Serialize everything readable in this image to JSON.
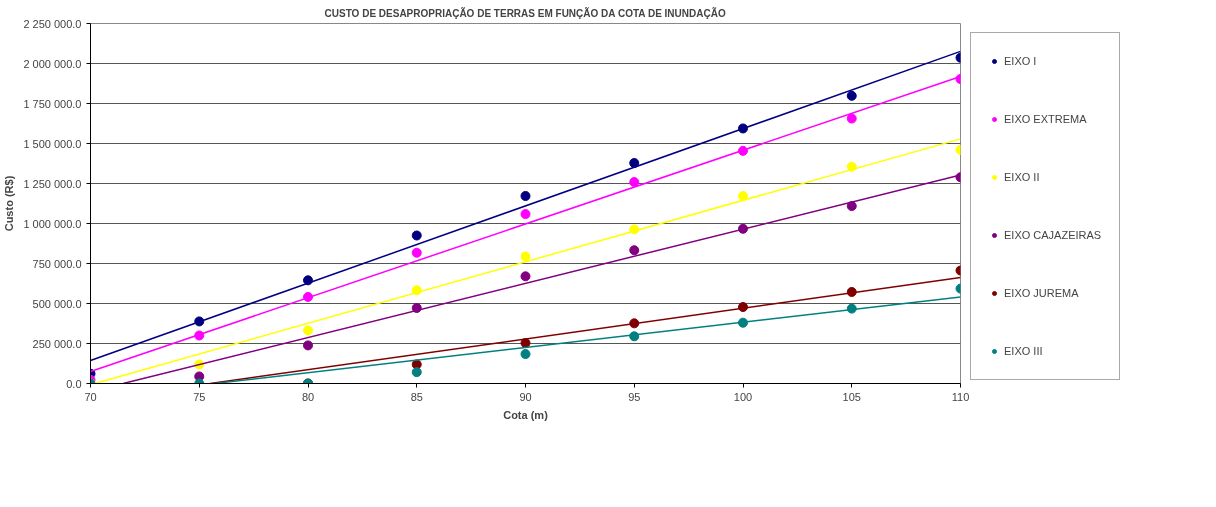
{
  "chart_data": {
    "type": "scatter",
    "title": "CUSTO DE DESAPROPRIAÇÃO DE TERRAS EM FUNÇÃO DA COTA DE INUNDAÇÃO",
    "xlabel": "Cota (m)",
    "ylabel": "Custo (R$)",
    "x": [
      70,
      75,
      80,
      85,
      90,
      95,
      100,
      105,
      110
    ],
    "xlim": [
      70,
      110
    ],
    "xticks": [
      70,
      75,
      80,
      85,
      90,
      95,
      100,
      105,
      110
    ],
    "ylim": [
      0,
      2250000
    ],
    "yticks": [
      {
        "value": 0,
        "label": "0.0"
      },
      {
        "value": 250000,
        "label": "250 000.0"
      },
      {
        "value": 500000,
        "label": "500 000.0"
      },
      {
        "value": 750000,
        "label": "750 000.0"
      },
      {
        "value": 1000000,
        "label": "1 000 000.0"
      },
      {
        "value": 1250000,
        "label": "1 250 000.0"
      },
      {
        "value": 1500000,
        "label": "1 500 000.0"
      },
      {
        "value": 1750000,
        "label": "1 750 000.0"
      },
      {
        "value": 2000000,
        "label": "2 000 000.0"
      },
      {
        "value": 2250000,
        "label": "2 250 000.0"
      }
    ],
    "grid": "y",
    "legend": "right",
    "series": [
      {
        "name": "EIXO I",
        "color": "#000080",
        "marker": "circle",
        "values": [
          61000,
          388000,
          645000,
          925000,
          1172000,
          1378000,
          1594000,
          1798000,
          2036000
        ]
      },
      {
        "name": "EIXO EXTREMA",
        "color": "#ff00ff",
        "marker": "circle",
        "values": [
          23000,
          300000,
          541000,
          817000,
          1059000,
          1259000,
          1454000,
          1656000,
          1903000
        ]
      },
      {
        "name": "EIXO II",
        "color": "#ffff00",
        "marker": "circle",
        "values": [
          0,
          119000,
          332000,
          583000,
          794000,
          963000,
          1172000,
          1355000,
          1460000
        ]
      },
      {
        "name": "EIXO CAJAZEIRAS",
        "color": "#800080",
        "marker": "circle",
        "values": [
          null,
          44000,
          238000,
          472000,
          670000,
          833000,
          967000,
          1109000,
          1289000
        ]
      },
      {
        "name": "EIXO JUREMA",
        "color": "#800000",
        "marker": "circle",
        "values": [
          null,
          null,
          0,
          119000,
          253000,
          376000,
          478000,
          572000,
          706000
        ]
      },
      {
        "name": "EIXO III",
        "color": "#008080",
        "marker": "circle",
        "values": [
          0,
          0,
          0,
          71000,
          184000,
          295000,
          380000,
          468000,
          593000
        ]
      },
      {
        "type": "line",
        "color": "#000080",
        "x": [
          70,
          110
        ],
        "values": [
          144000,
          2076000
        ]
      },
      {
        "type": "line",
        "color": "#ff00ff",
        "x": [
          70,
          110
        ],
        "values": [
          75000,
          1919000
        ]
      },
      {
        "type": "line",
        "color": "#ffff00",
        "x": [
          70.2,
          110
        ],
        "values": [
          0,
          1529000
        ]
      },
      {
        "type": "line",
        "color": "#800080",
        "x": [
          71.5,
          110
        ],
        "values": [
          0,
          1303000
        ]
      },
      {
        "type": "line",
        "color": "#800000",
        "x": [
          75.5,
          110
        ],
        "values": [
          0,
          662000
        ]
      },
      {
        "type": "line",
        "color": "#008080",
        "x": [
          75.7,
          110
        ],
        "values": [
          0,
          541000
        ]
      }
    ]
  }
}
